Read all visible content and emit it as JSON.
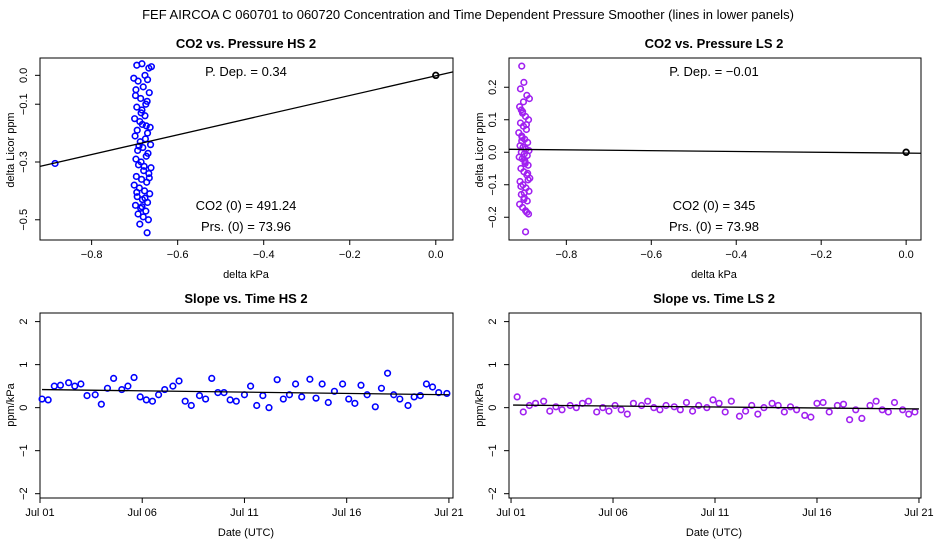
{
  "figure": {
    "suptitle": "FEF   AIRCOA C   060701 to 060720   Concentration and Time Dependent Pressure Smoother (lines in lower panels)"
  },
  "colors": {
    "hs": "#0000ff",
    "ls": "#a020f0",
    "line": "#000000"
  },
  "chart_data": [
    {
      "id": "p1",
      "type": "scatter",
      "title": "CO2 vs. Pressure HS 2",
      "xlabel": "delta kPa",
      "ylabel": "delta Licor ppm",
      "xlim": [
        -0.92,
        0.04
      ],
      "ylim": [
        -0.57,
        0.06
      ],
      "xticks": [
        -0.8,
        -0.6,
        -0.4,
        -0.2,
        0.0
      ],
      "xtick_labels": [
        "−0.8",
        "−0.6",
        "−0.4",
        "−0.2",
        "0.0"
      ],
      "yticks": [
        0.0,
        -0.1,
        -0.3,
        -0.5
      ],
      "ytick_labels": [
        "0.0",
        "−0.1",
        "−0.3",
        "−0.5"
      ],
      "color": "hs",
      "annotations": [
        "P. Dep. =  0.34",
        "CO2 (0) =  491.24",
        "Prs. (0) =  73.96"
      ],
      "fit": {
        "x": [
          -0.92,
          0.04
        ],
        "y": [
          -0.315,
          0.012
        ]
      },
      "marker": {
        "x": 0.0,
        "y": 0.0
      },
      "points": {
        "x": [
          -0.885,
          -0.695,
          -0.683,
          -0.676,
          -0.667,
          -0.702,
          -0.692,
          -0.68,
          -0.67,
          -0.661,
          -0.698,
          -0.686,
          -0.674,
          -0.666,
          -0.695,
          -0.683,
          -0.671,
          -0.7,
          -0.688,
          -0.676,
          -0.664,
          -0.694,
          -0.682,
          -0.67,
          -0.699,
          -0.687,
          -0.675,
          -0.663,
          -0.693,
          -0.681,
          -0.669,
          -0.697,
          -0.685,
          -0.673,
          -0.662,
          -0.691,
          -0.679,
          -0.667,
          -0.696,
          -0.684,
          -0.672,
          -0.701,
          -0.689,
          -0.677,
          -0.665,
          -0.694,
          -0.682,
          -0.67,
          -0.698,
          -0.686,
          -0.674,
          -0.692,
          -0.68,
          -0.668,
          -0.697,
          -0.685,
          -0.673,
          -0.69,
          -0.678,
          -0.666,
          -0.695,
          -0.683,
          -0.671,
          -0.688,
          -0.676
        ],
        "y": [
          -0.305,
          0.035,
          0.04,
          0.0,
          0.025,
          -0.01,
          -0.02,
          -0.04,
          -0.015,
          0.03,
          -0.07,
          -0.08,
          -0.1,
          -0.06,
          -0.11,
          -0.12,
          -0.09,
          -0.15,
          -0.16,
          -0.14,
          -0.18,
          -0.19,
          -0.17,
          -0.2,
          -0.21,
          -0.23,
          -0.22,
          -0.24,
          -0.26,
          -0.25,
          -0.27,
          -0.29,
          -0.3,
          -0.28,
          -0.32,
          -0.31,
          -0.33,
          -0.34,
          -0.35,
          -0.36,
          -0.37,
          -0.38,
          -0.39,
          -0.4,
          -0.41,
          -0.42,
          -0.43,
          -0.44,
          -0.45,
          -0.46,
          -0.47,
          -0.48,
          -0.49,
          -0.5,
          -0.05,
          -0.13,
          -0.175,
          -0.245,
          -0.315,
          -0.355,
          -0.405,
          -0.455,
          -0.545,
          -0.515,
          -0.425
        ]
      }
    },
    {
      "id": "p2",
      "type": "scatter",
      "title": "CO2 vs. Pressure LS 2",
      "xlabel": "delta kPa",
      "ylabel": "delta Licor ppm",
      "xlim": [
        -0.935,
        0.035
      ],
      "ylim": [
        -0.27,
        0.29
      ],
      "xticks": [
        -0.8,
        -0.6,
        -0.4,
        -0.2,
        0.0
      ],
      "xtick_labels": [
        "−0.8",
        "−0.6",
        "−0.4",
        "−0.2",
        "0.0"
      ],
      "yticks": [
        0.2,
        0.1,
        0.0,
        -0.1,
        -0.2
      ],
      "ytick_labels": [
        "0.2",
        "0.1",
        "0.0",
        "−0.1",
        "−0.2"
      ],
      "color": "ls",
      "annotations": [
        "P. Dep. =  −0.01",
        "CO2 (0) =  345",
        "Prs. (0) =  73.98"
      ],
      "fit": {
        "x": [
          -0.935,
          0.035
        ],
        "y": [
          0.009,
          -0.003
        ]
      },
      "marker": {
        "x": 0.0,
        "y": 0.0
      },
      "points": {
        "x": [
          -0.905,
          -0.9,
          -0.893,
          -0.887,
          -0.91,
          -0.903,
          -0.896,
          -0.889,
          -0.908,
          -0.901,
          -0.894,
          -0.912,
          -0.905,
          -0.898,
          -0.891,
          -0.909,
          -0.902,
          -0.895,
          -0.888,
          -0.906,
          -0.899,
          -0.892,
          -0.911,
          -0.904,
          -0.897,
          -0.89,
          -0.907,
          -0.9,
          -0.893,
          -0.886,
          -0.909,
          -0.902,
          -0.895,
          -0.888,
          -0.906,
          -0.899,
          -0.892,
          -0.91,
          -0.903,
          -0.896,
          -0.889,
          -0.908,
          -0.901,
          -0.894,
          -0.905,
          -0.898,
          -0.891,
          -0.907,
          -0.9,
          -0.893,
          -0.904,
          -0.897,
          -0.89,
          -0.906,
          -0.899,
          -0.896,
          -0.903
        ],
        "y": [
          0.265,
          0.215,
          0.175,
          0.165,
          0.14,
          0.12,
          0.11,
          0.1,
          0.09,
          0.08,
          0.07,
          0.06,
          0.05,
          0.04,
          0.03,
          0.02,
          0.015,
          0.01,
          0.005,
          0.0,
          -0.005,
          -0.01,
          -0.015,
          -0.02,
          -0.03,
          -0.04,
          -0.05,
          -0.06,
          -0.07,
          -0.08,
          -0.09,
          -0.1,
          -0.11,
          -0.12,
          -0.13,
          -0.14,
          -0.15,
          -0.16,
          -0.17,
          -0.18,
          -0.19,
          0.195,
          0.155,
          0.085,
          0.035,
          -0.025,
          -0.065,
          -0.105,
          -0.145,
          -0.185,
          0.045,
          -0.035,
          -0.085,
          0.13,
          -0.125,
          -0.245,
          0.125
        ]
      }
    },
    {
      "id": "p3",
      "type": "scatter",
      "title": "Slope vs. Time HS 2",
      "xlabel": "Date (UTC)",
      "ylabel": "ppm/kPa",
      "xlim": [
        0.0,
        20.2
      ],
      "ylim": [
        -2.1,
        2.2
      ],
      "xticks": [
        0,
        5,
        10,
        15,
        20
      ],
      "xtick_labels": [
        "Jul 01",
        "Jul 06",
        "Jul 11",
        "Jul 16",
        "Jul 21"
      ],
      "yticks": [
        2,
        1,
        0,
        -1,
        -2
      ],
      "ytick_labels": [
        "2",
        "1",
        "0",
        "−1",
        "−2"
      ],
      "color": "hs",
      "annotations": [],
      "fit": {
        "x": [
          0.1,
          20.0
        ],
        "y": [
          0.42,
          0.3
        ]
      },
      "points": {
        "x": [
          0.1,
          0.4,
          0.7,
          1.0,
          1.4,
          1.7,
          2.0,
          2.3,
          2.7,
          3.0,
          3.3,
          3.6,
          4.0,
          4.3,
          4.6,
          4.9,
          5.2,
          5.5,
          5.8,
          6.1,
          6.5,
          6.8,
          7.1,
          7.4,
          7.8,
          8.1,
          8.4,
          8.7,
          9.0,
          9.3,
          9.6,
          10.0,
          10.3,
          10.6,
          10.9,
          11.2,
          11.6,
          11.9,
          12.2,
          12.5,
          12.8,
          13.2,
          13.5,
          13.8,
          14.1,
          14.4,
          14.8,
          15.1,
          15.4,
          15.7,
          16.0,
          16.4,
          16.7,
          17.0,
          17.3,
          17.6,
          18.0,
          18.3,
          18.6,
          18.9,
          19.2,
          19.5,
          19.9
        ],
        "y": [
          0.2,
          0.18,
          0.5,
          0.52,
          0.58,
          0.5,
          0.55,
          0.28,
          0.3,
          0.08,
          0.45,
          0.68,
          0.42,
          0.5,
          0.7,
          0.25,
          0.18,
          0.15,
          0.3,
          0.42,
          0.5,
          0.62,
          0.15,
          0.05,
          0.28,
          0.2,
          0.68,
          0.35,
          0.35,
          0.18,
          0.15,
          0.3,
          0.5,
          0.05,
          0.28,
          0.0,
          0.65,
          0.2,
          0.3,
          0.55,
          0.25,
          0.66,
          0.22,
          0.55,
          0.12,
          0.38,
          0.55,
          0.2,
          0.1,
          0.52,
          0.3,
          0.02,
          0.45,
          0.8,
          0.3,
          0.2,
          0.05,
          0.25,
          0.28,
          0.55,
          0.48,
          0.35,
          0.33
        ]
      }
    },
    {
      "id": "p4",
      "type": "scatter",
      "title": "Slope vs. Time LS 2",
      "xlabel": "Date (UTC)",
      "ylabel": "ppm/kPa",
      "xlim": [
        -0.1,
        20.1
      ],
      "ylim": [
        -2.1,
        2.2
      ],
      "xticks": [
        0,
        5,
        10,
        15,
        20
      ],
      "xtick_labels": [
        "Jul 01",
        "Jul 06",
        "Jul 11",
        "Jul 16",
        "Jul 21"
      ],
      "yticks": [
        2,
        1,
        0,
        -1,
        -2
      ],
      "ytick_labels": [
        "2",
        "1",
        "0",
        "−1",
        "−2"
      ],
      "color": "ls",
      "annotations": [],
      "fit": {
        "x": [
          0.1,
          20.0
        ],
        "y": [
          0.06,
          -0.03
        ]
      },
      "points": {
        "x": [
          0.3,
          0.6,
          0.9,
          1.2,
          1.6,
          1.9,
          2.2,
          2.5,
          2.9,
          3.2,
          3.5,
          3.8,
          4.2,
          4.5,
          4.8,
          5.1,
          5.4,
          5.7,
          6.0,
          6.4,
          6.7,
          7.0,
          7.3,
          7.6,
          8.0,
          8.3,
          8.6,
          8.9,
          9.2,
          9.6,
          9.9,
          10.2,
          10.5,
          10.8,
          11.2,
          11.5,
          11.8,
          12.1,
          12.4,
          12.8,
          13.1,
          13.4,
          13.7,
          14.0,
          14.4,
          14.7,
          15.0,
          15.3,
          15.6,
          16.0,
          16.3,
          16.6,
          16.9,
          17.2,
          17.6,
          17.9,
          18.2,
          18.5,
          18.8,
          19.2,
          19.5,
          19.8
        ],
        "y": [
          0.25,
          -0.1,
          0.05,
          0.1,
          0.15,
          -0.08,
          0.02,
          -0.05,
          0.05,
          0.0,
          0.1,
          0.15,
          -0.1,
          0.0,
          -0.08,
          0.05,
          -0.05,
          -0.15,
          0.1,
          0.05,
          0.15,
          0.0,
          -0.05,
          0.05,
          0.02,
          -0.05,
          0.12,
          -0.08,
          0.05,
          0.0,
          0.18,
          0.1,
          -0.1,
          0.15,
          -0.2,
          -0.08,
          0.05,
          -0.15,
          0.0,
          0.1,
          0.05,
          -0.1,
          0.02,
          -0.05,
          -0.18,
          -0.22,
          0.1,
          0.12,
          -0.1,
          0.05,
          0.08,
          -0.28,
          -0.05,
          -0.25,
          0.05,
          0.15,
          -0.05,
          -0.1,
          0.12,
          -0.05,
          -0.15,
          -0.1
        ]
      }
    }
  ]
}
